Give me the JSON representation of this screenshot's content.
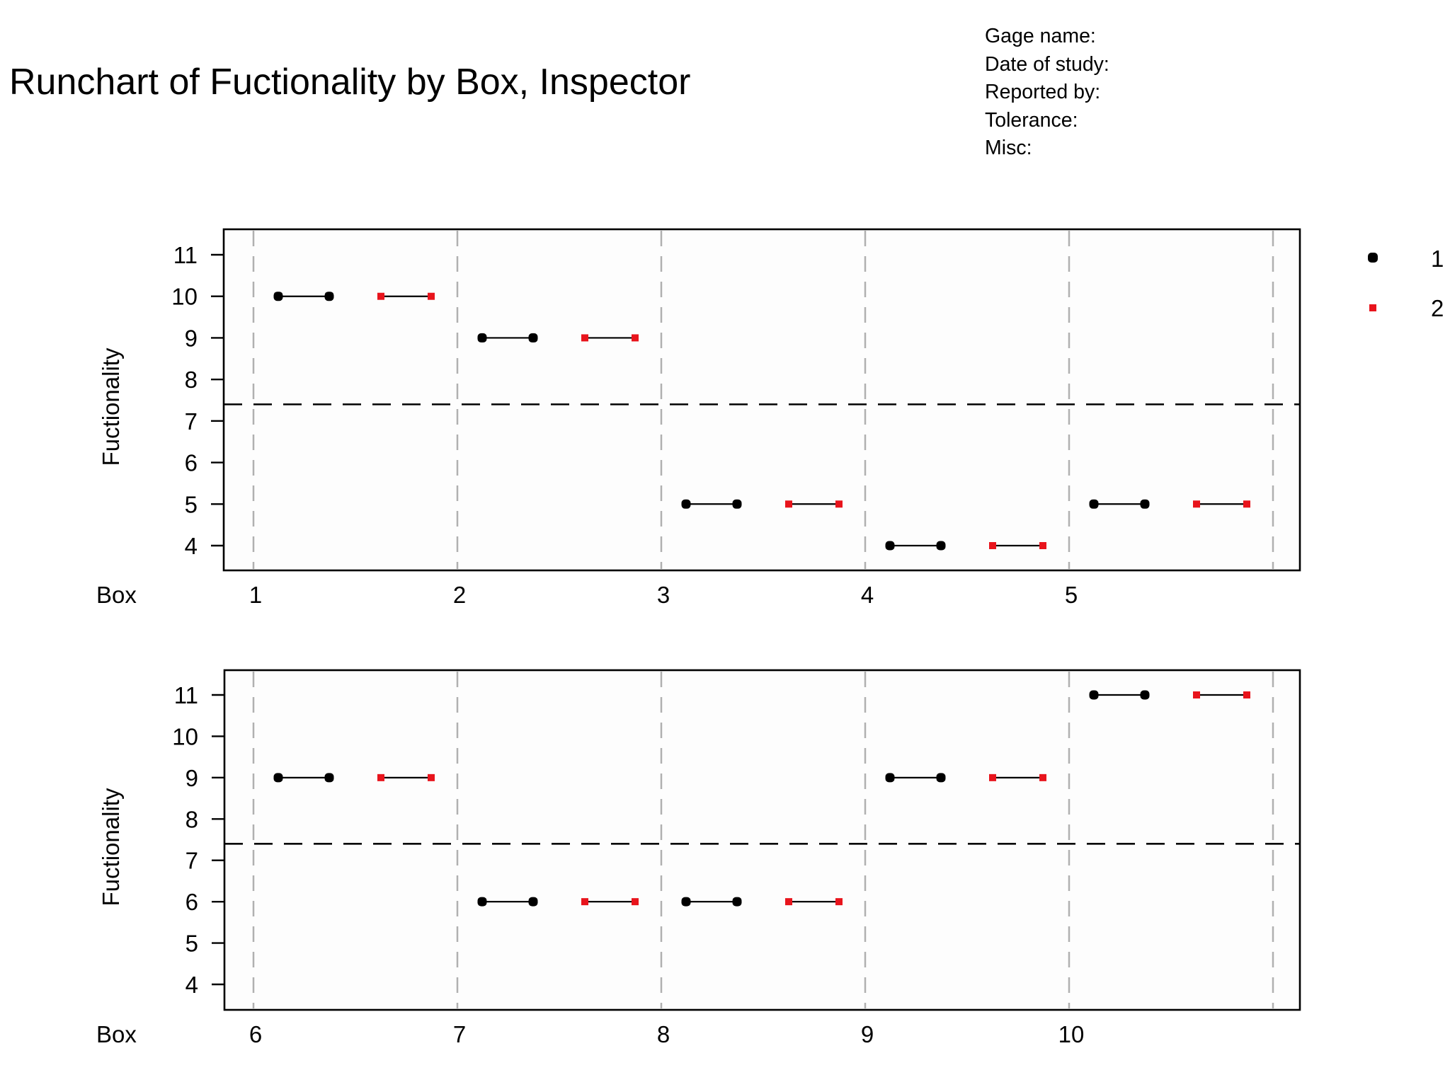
{
  "header": {
    "title": "Runchart of Fuctionality by Box, Inspector",
    "meta_lines": [
      "Gage name:",
      "Date of study:",
      "Reported by:",
      "Tolerance:",
      "Misc:"
    ]
  },
  "colors": {
    "inspector_1": "#000000",
    "inspector_2": "#e8141c",
    "grid": "#b0b0b0",
    "plot_bg": "#fdfdfd"
  },
  "legend": {
    "position": "right",
    "entries": [
      {
        "label": "1",
        "marker": "circle",
        "color": "#000000"
      },
      {
        "label": "2",
        "marker": "square",
        "color": "#e8141c"
      }
    ]
  },
  "chart_data": {
    "type": "line",
    "title": "Runchart of Fuctionality by Box, Inspector",
    "xlabel": "Box",
    "ylabel": "Fuctionality",
    "ylim": [
      3.4,
      11.6
    ],
    "yticks": [
      4,
      5,
      6,
      7,
      8,
      9,
      10,
      11
    ],
    "grid": "vertical dashed at box boundaries",
    "mean_line": 7.4,
    "series_names": [
      "1",
      "2"
    ],
    "panels": [
      {
        "boxes": [
          "1",
          "2",
          "3",
          "4",
          "5"
        ],
        "series": [
          {
            "name": "1",
            "values": [
              [
                10,
                10
              ],
              [
                9,
                9
              ],
              [
                5,
                5
              ],
              [
                4,
                4
              ],
              [
                5,
                5
              ]
            ]
          },
          {
            "name": "2",
            "values": [
              [
                10,
                10
              ],
              [
                9,
                9
              ],
              [
                5,
                5
              ],
              [
                4,
                4
              ],
              [
                5,
                5
              ]
            ]
          }
        ]
      },
      {
        "boxes": [
          "6",
          "7",
          "8",
          "9",
          "10"
        ],
        "series": [
          {
            "name": "1",
            "values": [
              [
                9,
                9
              ],
              [
                6,
                6
              ],
              [
                6,
                6
              ],
              [
                9,
                9
              ],
              [
                11,
                11
              ]
            ]
          },
          {
            "name": "2",
            "values": [
              [
                9,
                9
              ],
              [
                6,
                6
              ],
              [
                6,
                6
              ],
              [
                9,
                9
              ],
              [
                11,
                11
              ]
            ]
          }
        ]
      }
    ]
  }
}
